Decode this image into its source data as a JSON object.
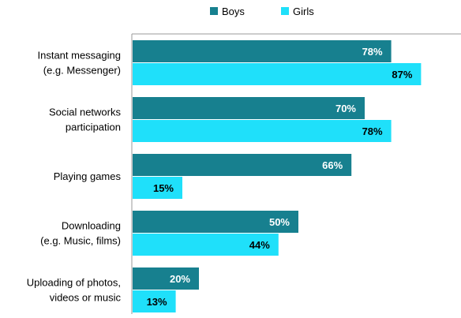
{
  "chart_data": {
    "type": "bar",
    "orientation": "horizontal",
    "title": "",
    "xlabel": "",
    "ylabel": "",
    "xlim": [
      0,
      100
    ],
    "grid": false,
    "legend_position": "top",
    "value_suffix": "%",
    "categories": [
      [
        "Instant messaging",
        "(e.g. Messenger)"
      ],
      [
        "Social networks",
        "participation"
      ],
      [
        "Playing games"
      ],
      [
        "Downloading",
        "(e.g. Music, films)"
      ],
      [
        "Uploading of photos,",
        "videos or music"
      ]
    ],
    "series": [
      {
        "name": "Boys",
        "color": "#17808F",
        "label_color": "#FFFFFF",
        "values": [
          78,
          70,
          66,
          50,
          20
        ]
      },
      {
        "name": "Girls",
        "color": "#1FE0FA",
        "label_color": "#000000",
        "values": [
          87,
          78,
          15,
          44,
          13
        ]
      }
    ]
  }
}
